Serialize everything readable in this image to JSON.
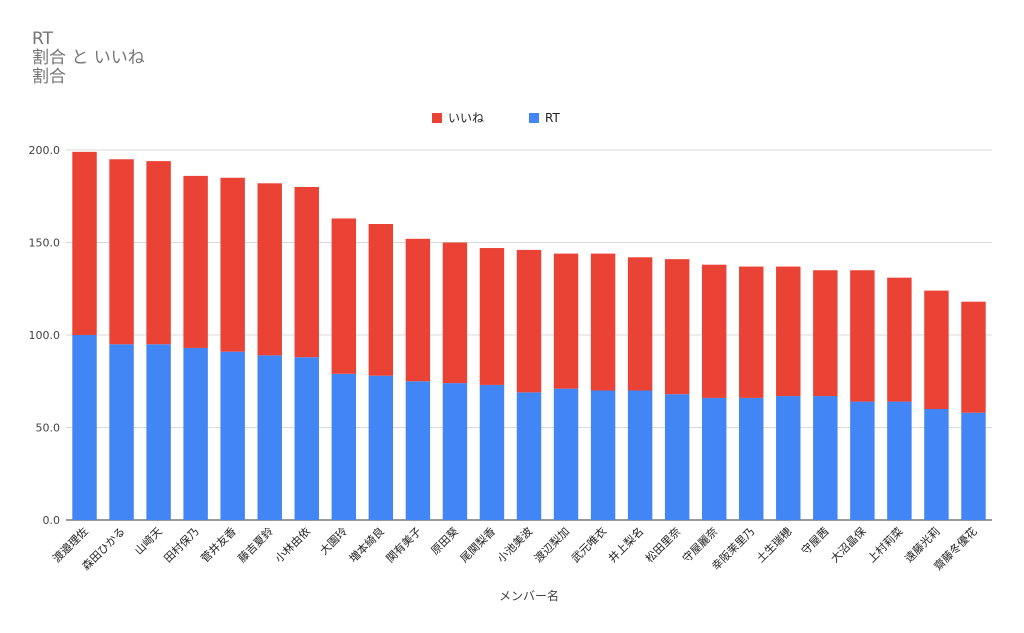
{
  "chart_data": {
    "type": "bar",
    "stacked": true,
    "title": "RT\n割合 と いいね\n割合",
    "xlabel": "メンバー名",
    "ylabel": "",
    "ylim": [
      0,
      200
    ],
    "yticks": [
      "0.0",
      "50.0",
      "100.0",
      "150.0",
      "200.0"
    ],
    "grid": true,
    "legend_position": "top",
    "legend": [
      {
        "name": "いいね",
        "color": "#EA4335"
      },
      {
        "name": "RT",
        "color": "#4285F4"
      }
    ],
    "categories": [
      "渡邉理佐",
      "森田ひかる",
      "山﨑天",
      "田村保乃",
      "菅井友香",
      "藤吉夏鈴",
      "小林由依",
      "大園玲",
      "増本綺良",
      "関有美子",
      "原田葵",
      "尾関梨香",
      "小池美波",
      "渡辺梨加",
      "武元唯衣",
      "井上梨名",
      "松田里奈",
      "守屋麗奈",
      "幸阪茉里乃",
      "土生瑞穂",
      "守屋茜",
      "大沼晶保",
      "上村莉菜",
      "遠藤光莉",
      "齋藤冬優花"
    ],
    "series": [
      {
        "name": "RT",
        "color": "#4285F4",
        "values": [
          100,
          95,
          95,
          93,
          91,
          89,
          88,
          79,
          78,
          75,
          74,
          73,
          69,
          71,
          70,
          70,
          68,
          66,
          66,
          67,
          67,
          64,
          64,
          60,
          58
        ]
      },
      {
        "name": "いいね",
        "color": "#EA4335",
        "values": [
          99,
          100,
          99,
          93,
          94,
          93,
          92,
          84,
          82,
          77,
          76,
          74,
          77,
          73,
          74,
          72,
          73,
          72,
          71,
          70,
          68,
          71,
          67,
          64,
          60
        ]
      }
    ]
  }
}
